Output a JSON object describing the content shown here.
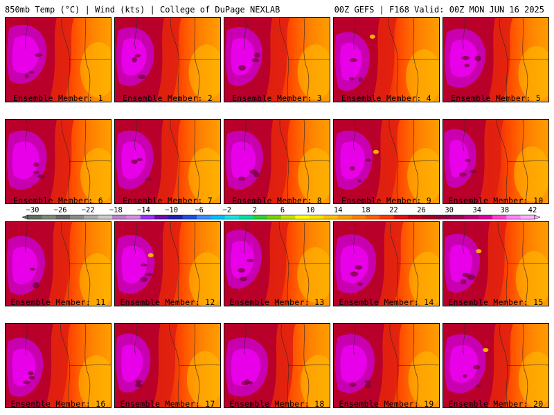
{
  "header": {
    "left": "850mb Temp (°C) | Wind (kts) | College of DuPage NEXLAB",
    "right": "00Z GEFS | F168 Valid: 00Z MON JUN 16 2025"
  },
  "colorbar": {
    "labels": [
      "-30",
      "-26",
      "-22",
      "-18",
      "-14",
      "-10",
      "-6",
      "-2",
      "2",
      "6",
      "10",
      "14",
      "18",
      "22",
      "26",
      "30",
      "34",
      "38",
      "42"
    ],
    "colors": [
      "#5f6f5f",
      "#7a8a7a",
      "#666666",
      "#8a8a8a",
      "#aaaaaa",
      "#c9c9c9",
      "#b982c8",
      "#d48ee0",
      "#9b30ff",
      "#6a0dad",
      "#2020b0",
      "#1e4fe0",
      "#3c8cff",
      "#00bfff",
      "#20dfdf",
      "#00e0a0",
      "#30d030",
      "#7ad000",
      "#c8e000",
      "#ffff00",
      "#ffe000",
      "#ffc000",
      "#ffa000",
      "#ff8000",
      "#ff6000",
      "#ff3800",
      "#e01010",
      "#c00018",
      "#a00028",
      "#900040",
      "#a0005a",
      "#c0007a",
      "#e000a0",
      "#ff40d0",
      "#ff80ff",
      "#ffb0ff"
    ]
  },
  "members": [
    {
      "label": "Ensemble Member: 1"
    },
    {
      "label": "Ensemble Member: 2"
    },
    {
      "label": "Ensemble Member: 3"
    },
    {
      "label": "Ensemble Member: 4"
    },
    {
      "label": "Ensemble Member: 5"
    },
    {
      "label": "Ensemble Member: 6"
    },
    {
      "label": "Ensemble Member: 7"
    },
    {
      "label": "Ensemble Member: 8"
    },
    {
      "label": "Ensemble Member: 9"
    },
    {
      "label": "Ensemble Member: 10"
    },
    {
      "label": "Ensemble Member: 11"
    },
    {
      "label": "Ensemble Member: 12"
    },
    {
      "label": "Ensemble Member: 13"
    },
    {
      "label": "Ensemble Member: 14"
    },
    {
      "label": "Ensemble Member: 15"
    },
    {
      "label": "Ensemble Member: 16"
    },
    {
      "label": "Ensemble Member: 17"
    },
    {
      "label": "Ensemble Member: 18"
    },
    {
      "label": "Ensemble Member: 19"
    },
    {
      "label": "Ensemble Member: 20"
    }
  ],
  "map_colors": {
    "hot_core": "#e800e8",
    "hot_core2": "#c800b0",
    "deep_red": "#b8002a",
    "red": "#e02010",
    "red_orange": "#ff4a00",
    "orange": "#ff8000",
    "light_orange": "#ffa000",
    "yellow_orange": "#ffc000",
    "boundary": "#3a2a2a"
  }
}
